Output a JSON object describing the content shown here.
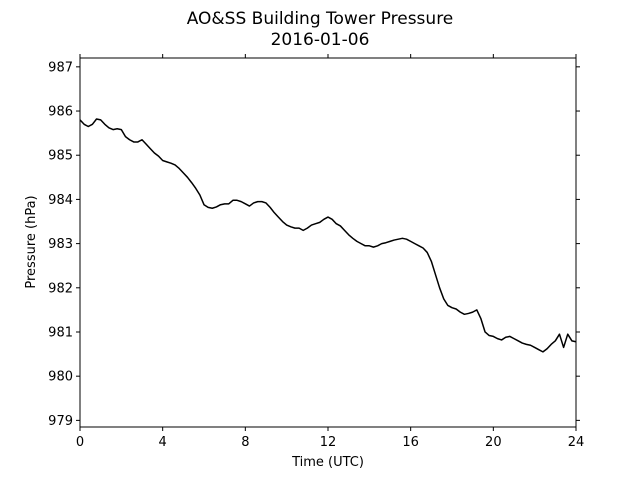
{
  "chart_data": {
    "type": "line",
    "title": "AO&SS Building Tower Pressure",
    "subtitle": "2016-01-06",
    "xlabel": "Time (UTC)",
    "ylabel": "Pressure (hPa)",
    "xlim": [
      0,
      24
    ],
    "ylim": [
      978.85,
      987.2
    ],
    "xticks": [
      0,
      4,
      8,
      12,
      16,
      20,
      24
    ],
    "xtick_labels": [
      "0",
      "4",
      "8",
      "12",
      "16",
      "20",
      "24"
    ],
    "yticks": [
      979,
      980,
      981,
      982,
      983,
      984,
      985,
      986,
      987
    ],
    "ytick_labels": [
      "979",
      "980",
      "981",
      "982",
      "983",
      "984",
      "985",
      "986",
      "987"
    ],
    "grid": false,
    "line_color": "#000000",
    "series": [
      {
        "x": [
          0,
          0.2,
          0.4,
          0.6,
          0.8,
          1.0,
          1.2,
          1.4,
          1.6,
          1.8,
          2.0,
          2.2,
          2.4,
          2.6,
          2.8,
          3.0,
          3.2,
          3.4,
          3.6,
          3.8,
          4.0,
          4.2,
          4.4,
          4.6,
          4.8,
          5.0,
          5.2,
          5.4,
          5.6,
          5.8,
          6.0,
          6.2,
          6.4,
          6.6,
          6.8,
          7.0,
          7.2,
          7.4,
          7.6,
          7.8,
          8.0,
          8.2,
          8.4,
          8.6,
          8.8,
          9.0,
          9.2,
          9.4,
          9.6,
          9.8,
          10.0,
          10.2,
          10.4,
          10.6,
          10.8,
          11.0,
          11.2,
          11.4,
          11.6,
          11.8,
          12.0,
          12.2,
          12.4,
          12.6,
          12.8,
          13.0,
          13.2,
          13.4,
          13.6,
          13.8,
          14.0,
          14.2,
          14.4,
          14.6,
          14.8,
          15.0,
          15.2,
          15.4,
          15.6,
          15.8,
          16.0,
          16.2,
          16.4,
          16.6,
          16.8,
          17.0,
          17.2,
          17.4,
          17.6,
          17.8,
          18.0,
          18.2,
          18.4,
          18.6,
          18.8,
          19.0,
          19.2,
          19.4,
          19.6,
          19.8,
          20.0,
          20.2,
          20.4,
          20.6,
          20.8,
          21.0,
          21.2,
          21.4,
          21.6,
          21.8,
          22.0,
          22.2,
          22.4,
          22.6,
          22.8,
          23.0,
          23.2,
          23.4,
          23.6,
          23.8,
          24.0
        ],
        "values": [
          985.8,
          985.7,
          985.65,
          985.7,
          985.82,
          985.8,
          985.7,
          985.62,
          985.58,
          985.6,
          985.58,
          985.42,
          985.35,
          985.3,
          985.3,
          985.35,
          985.25,
          985.15,
          985.05,
          984.98,
          984.88,
          984.85,
          984.82,
          984.78,
          984.7,
          984.6,
          984.5,
          984.38,
          984.25,
          984.1,
          983.88,
          983.82,
          983.8,
          983.83,
          983.88,
          983.9,
          983.9,
          983.98,
          983.98,
          983.95,
          983.9,
          983.85,
          983.92,
          983.95,
          983.95,
          983.92,
          983.82,
          983.7,
          983.6,
          983.5,
          983.42,
          983.38,
          983.35,
          983.35,
          983.3,
          983.35,
          983.42,
          983.45,
          983.48,
          983.55,
          983.6,
          983.55,
          983.45,
          983.4,
          983.3,
          983.2,
          983.12,
          983.05,
          983.0,
          982.95,
          982.95,
          982.92,
          982.95,
          983.0,
          983.02,
          983.05,
          983.08,
          983.1,
          983.12,
          983.1,
          983.05,
          983.0,
          982.95,
          982.9,
          982.8,
          982.6,
          982.3,
          982.0,
          981.75,
          981.6,
          981.55,
          981.52,
          981.45,
          981.4,
          981.42,
          981.45,
          981.5,
          981.3,
          981.0,
          980.92,
          980.9,
          980.85,
          980.82,
          980.88,
          980.9,
          980.85,
          980.8,
          980.75,
          980.72,
          980.7,
          980.65,
          980.6,
          980.55,
          980.62,
          980.72,
          980.8,
          980.95,
          980.65,
          980.95,
          980.8,
          980.78
        ]
      }
    ]
  }
}
